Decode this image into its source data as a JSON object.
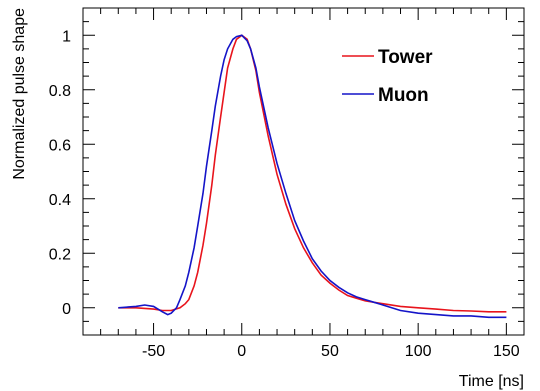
{
  "chart_data": {
    "type": "line",
    "xlabel": "Time [ns]",
    "ylabel": "Normalized pulse shape",
    "xlim": [
      -90,
      160
    ],
    "ylim": [
      -0.1,
      1.1
    ],
    "x_ticks": [
      -50,
      0,
      50,
      100,
      150
    ],
    "x_tick_labels": [
      "-50",
      "0",
      "50",
      "100",
      "150"
    ],
    "y_ticks": [
      0,
      0.2,
      0.4,
      0.6,
      0.8,
      1.0
    ],
    "y_tick_labels": [
      "0",
      "0.2",
      "0.4",
      "0.6",
      "0.8",
      "1"
    ],
    "grid": false,
    "legend_position": "top-right",
    "series": [
      {
        "name": "Tower",
        "color": "#e8141c",
        "x": [
          -70,
          -60,
          -50,
          -45,
          -40,
          -35,
          -32,
          -30,
          -27,
          -25,
          -22,
          -20,
          -17,
          -15,
          -12,
          -10,
          -8,
          -5,
          -3,
          0,
          3,
          5,
          8,
          10,
          15,
          20,
          25,
          30,
          35,
          40,
          45,
          50,
          55,
          60,
          65,
          70,
          80,
          90,
          100,
          110,
          120,
          130,
          140,
          150
        ],
        "y": [
          0.0,
          0.0,
          -0.005,
          -0.01,
          -0.01,
          0.0,
          0.015,
          0.03,
          0.08,
          0.13,
          0.23,
          0.31,
          0.45,
          0.56,
          0.7,
          0.79,
          0.88,
          0.95,
          0.985,
          1.0,
          0.985,
          0.95,
          0.87,
          0.79,
          0.63,
          0.49,
          0.38,
          0.29,
          0.22,
          0.165,
          0.12,
          0.09,
          0.065,
          0.045,
          0.035,
          0.025,
          0.015,
          0.005,
          0.0,
          -0.005,
          -0.01,
          -0.012,
          -0.015,
          -0.015
        ]
      },
      {
        "name": "Muon",
        "color": "#1414c8",
        "x": [
          -70,
          -60,
          -55,
          -50,
          -45,
          -42,
          -40,
          -37,
          -35,
          -32,
          -30,
          -27,
          -25,
          -22,
          -20,
          -17,
          -15,
          -12,
          -10,
          -8,
          -5,
          -3,
          0,
          3,
          5,
          8,
          10,
          15,
          20,
          25,
          30,
          35,
          40,
          45,
          50,
          55,
          60,
          65,
          70,
          75,
          80,
          90,
          100,
          110,
          120,
          130,
          140,
          150
        ],
        "y": [
          0.0,
          0.005,
          0.01,
          0.005,
          -0.015,
          -0.025,
          -0.02,
          0.0,
          0.03,
          0.08,
          0.13,
          0.22,
          0.3,
          0.42,
          0.52,
          0.65,
          0.74,
          0.85,
          0.91,
          0.95,
          0.985,
          0.995,
          1.0,
          0.98,
          0.95,
          0.88,
          0.81,
          0.66,
          0.53,
          0.42,
          0.32,
          0.245,
          0.18,
          0.135,
          0.1,
          0.075,
          0.055,
          0.04,
          0.03,
          0.02,
          0.01,
          -0.01,
          -0.02,
          -0.025,
          -0.03,
          -0.03,
          -0.035,
          -0.035
        ]
      }
    ]
  }
}
